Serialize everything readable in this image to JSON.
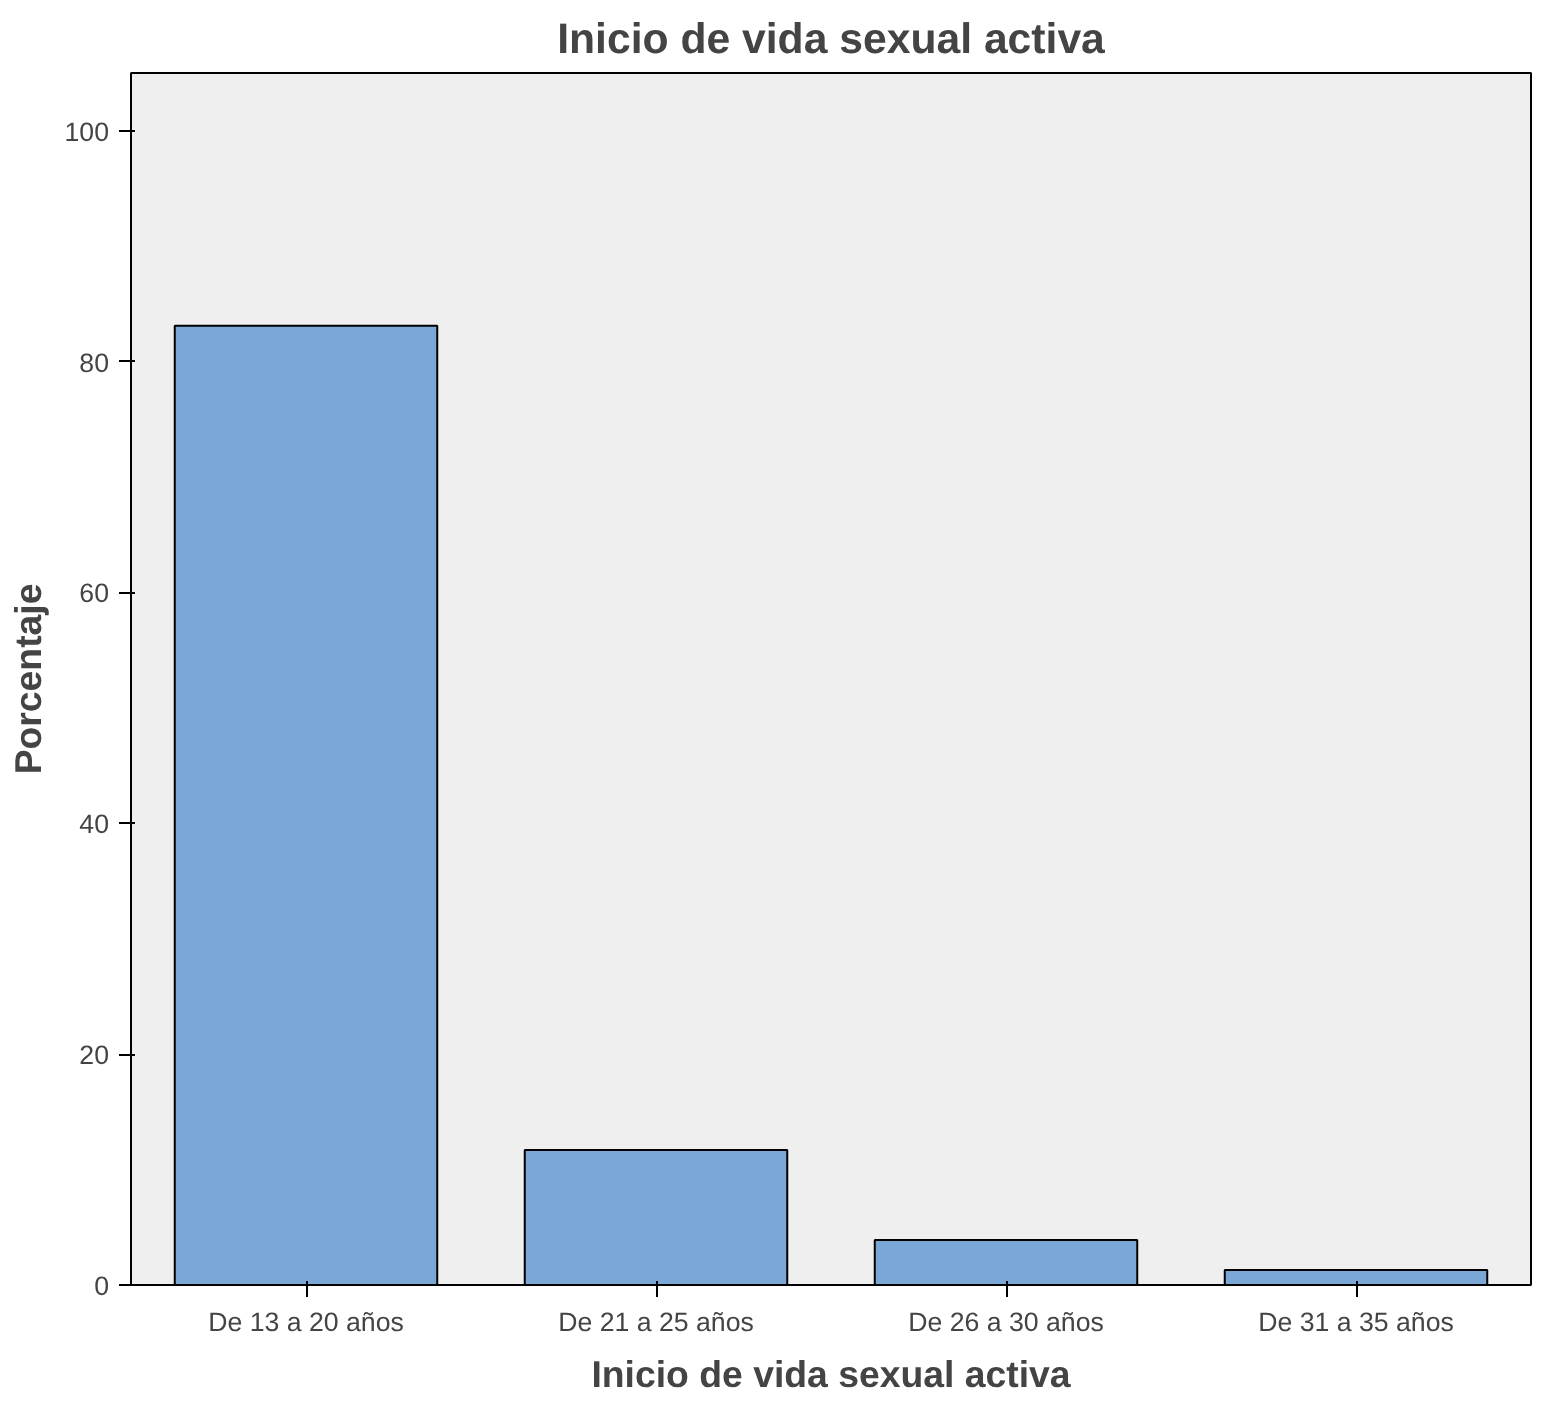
{
  "chart_data": {
    "type": "bar",
    "title": "Inicio de vida sexual activa",
    "xlabel": "Inicio de vida sexual activa",
    "ylabel": "Porcentaje",
    "categories": [
      "De 13 a 20 años",
      "De 21 a 25 años",
      "De 26 a 30 años",
      "De 31 a 35 años"
    ],
    "values": [
      83.1,
      11.7,
      3.9,
      1.3
    ],
    "color": "#7ba7d7",
    "ylim": [
      0,
      105
    ],
    "yticks": [
      0,
      20,
      40,
      60,
      80,
      100
    ],
    "grid": false
  }
}
